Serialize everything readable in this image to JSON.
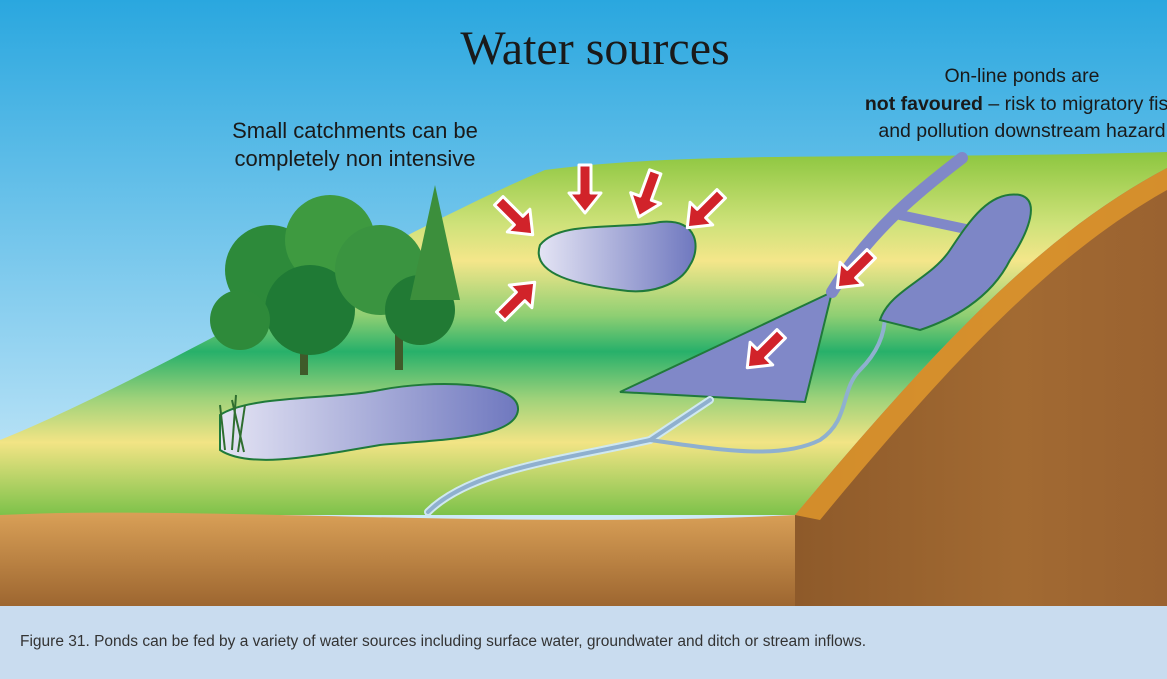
{
  "title": "Water sources",
  "annotations": {
    "catchments": {
      "lines": [
        "Small catchments can be",
        "completely non intensive"
      ]
    },
    "online_ponds": {
      "line1": "On-line ponds are",
      "line2_bold": "not favoured",
      "line2_rest": " – risk to migratory fish",
      "line3": "and pollution downstream hazard"
    }
  },
  "caption": "Figure 31. Ponds can be fed by a variety of water sources including surface water, groundwater and ditch or stream inflows."
}
